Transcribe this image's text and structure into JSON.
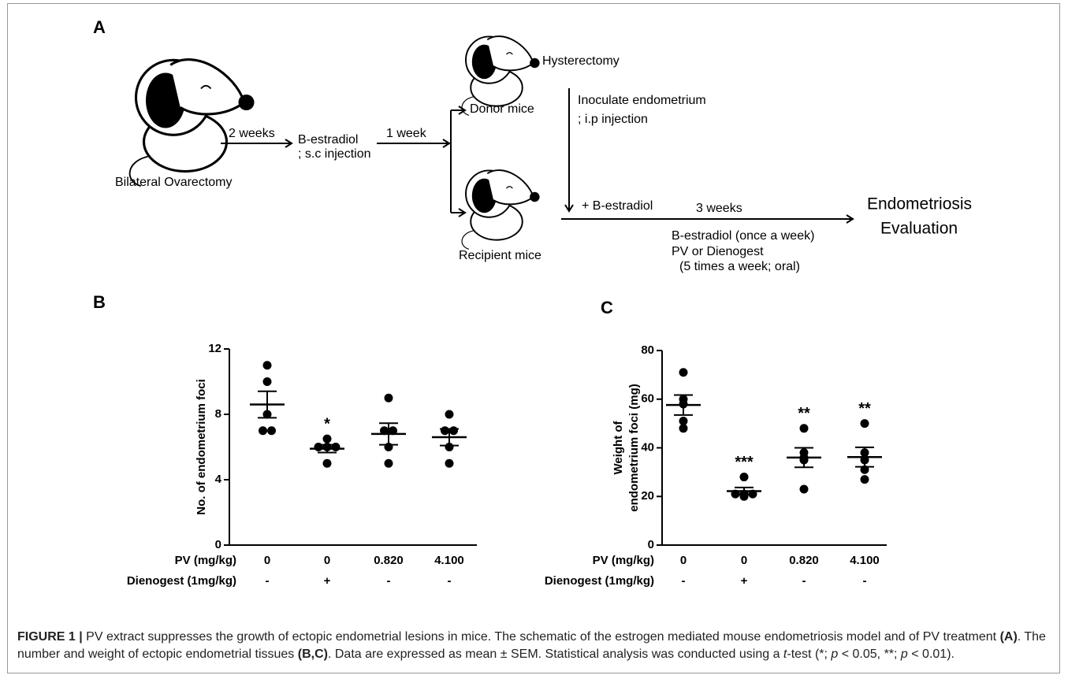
{
  "diagram": {
    "panel": "A",
    "labels": [
      "Bilateral Ovarectomy",
      "2 weeks",
      "B-estradiol",
      "; s.c injection",
      "1 week",
      "Donor mice",
      "Recipient mice",
      "Hysterectomy",
      "Inoculate endometrium",
      "; i.p injection",
      "+ B-estradiol",
      "3 weeks",
      "B-estradiol (once a week)",
      "PV or Dienogest",
      "(5 times a week; oral)",
      "Endometriosis",
      "Evaluation"
    ]
  },
  "chart_data": [
    {
      "type": "dotplot",
      "panel": "B",
      "ylabel": [
        "No. of endometrium foci"
      ],
      "row_labels": [
        "PV (mg/kg)",
        "Dienogest (1mg/kg)"
      ],
      "categories": [
        "0",
        "0",
        "0.820",
        "4.100"
      ],
      "dienogest": [
        "-",
        "+",
        "-",
        "-"
      ],
      "points": [
        [
          11,
          10,
          8,
          7,
          7
        ],
        [
          6.5,
          6,
          6,
          6,
          5
        ],
        [
          9,
          7,
          7,
          6,
          5
        ],
        [
          8,
          7,
          7,
          6,
          5
        ]
      ],
      "mean": [
        8.6,
        5.9,
        6.8,
        6.6
      ],
      "sem": [
        0.81,
        0.24,
        0.66,
        0.51
      ],
      "annotations": [
        null,
        "*",
        null,
        null
      ],
      "ylim": [
        0,
        12
      ],
      "yticks": [
        0,
        4,
        8,
        12
      ],
      "color": "#000000"
    },
    {
      "type": "dotplot",
      "panel": "C",
      "ylabel": [
        "Weight of",
        "endometrium foci (mg)"
      ],
      "row_labels": [
        "PV (mg/kg)",
        "Dienogest (1mg/kg)"
      ],
      "categories": [
        "0",
        "0",
        "0.820",
        "4.100"
      ],
      "dienogest": [
        "-",
        "+",
        "-",
        "-"
      ],
      "points": [
        [
          71,
          60,
          58,
          51,
          48
        ],
        [
          28,
          21,
          21,
          21,
          20
        ],
        [
          48,
          38,
          36,
          35,
          23
        ],
        [
          50,
          38,
          35,
          31,
          27
        ]
      ],
      "mean": [
        57.6,
        22.2,
        36,
        36.2
      ],
      "sem": [
        4.1,
        1.5,
        4.0,
        4.0
      ],
      "annotations": [
        null,
        "***",
        "**",
        "**"
      ],
      "ylim": [
        0,
        80
      ],
      "yticks": [
        0,
        20,
        40,
        60,
        80
      ],
      "color": "#000000"
    }
  ],
  "caption": [
    {
      "text": "FIGURE 1 | ",
      "style": "bold"
    },
    {
      "text": "PV extract suppresses the growth of ectopic endometrial lesions in mice. The schematic of the estrogen mediated mouse endometriosis model and of PV treatment ",
      "style": "plain"
    },
    {
      "text": "(A)",
      "style": "bold"
    },
    {
      "text": ". The number and weight of ectopic endometrial tissues ",
      "style": "plain"
    },
    {
      "text": "(B,C)",
      "style": "bold"
    },
    {
      "text": ". Data are expressed as mean ± SEM. Statistical analysis was conducted using a ",
      "style": "plain"
    },
    {
      "text": "t",
      "style": "italic"
    },
    {
      "text": "-test (*; ",
      "style": "plain"
    },
    {
      "text": "p",
      "style": "italic"
    },
    {
      "text": " < 0.05, **; ",
      "style": "plain"
    },
    {
      "text": "p",
      "style": "italic"
    },
    {
      "text": " < 0.01).",
      "style": "plain"
    }
  ]
}
